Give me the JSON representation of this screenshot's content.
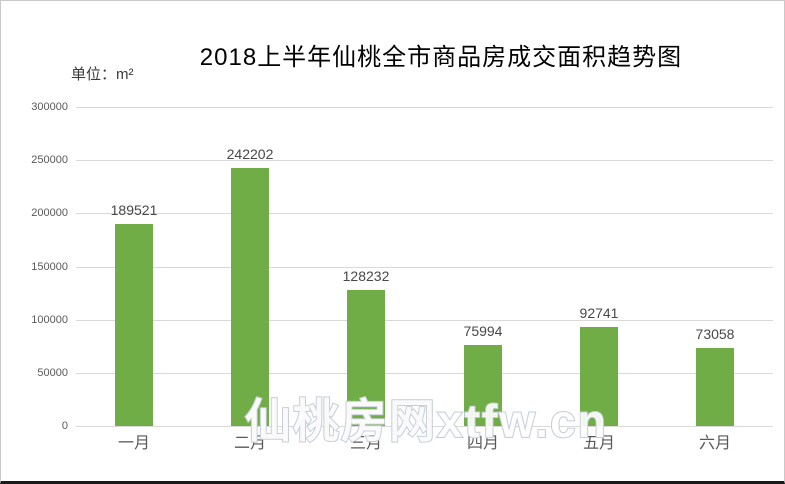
{
  "chart_data": {
    "type": "bar",
    "title": "2018上半年仙桃全市商品房成交面积趋势图",
    "unit": "单位：m²",
    "categories": [
      "一月",
      "二月",
      "三月",
      "四月",
      "五月",
      "六月"
    ],
    "values": [
      189521,
      242202,
      128232,
      75994,
      92741,
      73058
    ],
    "ylim": [
      0,
      300000
    ],
    "ytick_interval": 50000,
    "yticks": [
      300000,
      250000,
      200000,
      150000,
      100000,
      50000,
      0
    ],
    "grid": true,
    "data_labels": true,
    "legend": "none",
    "xlabel": "",
    "ylabel": "",
    "colors": {
      "bar": "#70ad47",
      "gridline": "#d9d9d9",
      "axis_text": "#595959",
      "data_label_text": "#484848",
      "title_text": "#000000",
      "watermark_stroke": "#c7ced8",
      "watermark_fill": "#ffffff"
    }
  },
  "watermark": {
    "text": "仙桃房网xtfw.cn"
  }
}
